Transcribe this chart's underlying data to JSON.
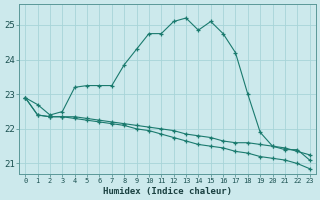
{
  "xlabel": "Humidex (Indice chaleur)",
  "background_color": "#cce9ec",
  "grid_color": "#a8d4d8",
  "line_color": "#1a7a6e",
  "xlim": [
    -0.5,
    23.5
  ],
  "ylim": [
    20.7,
    25.6
  ],
  "yticks": [
    21,
    22,
    23,
    24,
    25
  ],
  "xticks": [
    0,
    1,
    2,
    3,
    4,
    5,
    6,
    7,
    8,
    9,
    10,
    11,
    12,
    13,
    14,
    15,
    16,
    17,
    18,
    19,
    20,
    21,
    22,
    23
  ],
  "xtick_labels": [
    "0",
    "1",
    "2",
    "3",
    "4",
    "5",
    "6",
    "7",
    "8",
    "9",
    "10",
    "11",
    "12",
    "13",
    "14",
    "15",
    "16",
    "17",
    "18",
    "19",
    "20",
    "21",
    "22",
    "23"
  ],
  "series1_x": [
    0,
    1,
    2,
    3,
    4,
    5,
    6,
    7,
    8,
    9,
    10,
    11,
    12,
    13,
    14,
    15,
    16,
    17,
    18,
    19,
    20,
    21,
    22,
    23
  ],
  "series1_y": [
    22.9,
    22.7,
    22.4,
    22.5,
    23.2,
    23.25,
    23.25,
    23.25,
    23.85,
    24.3,
    24.75,
    24.75,
    25.1,
    25.2,
    24.85,
    25.1,
    24.75,
    24.2,
    23.0,
    21.9,
    21.5,
    21.4,
    21.4,
    21.1
  ],
  "series2_x": [
    0,
    1,
    2,
    3,
    4,
    5,
    6,
    7,
    8,
    9,
    10,
    11,
    12,
    13,
    14,
    15,
    16,
    17,
    18,
    19,
    20,
    21,
    22,
    23
  ],
  "series2_y": [
    22.9,
    22.4,
    22.35,
    22.35,
    22.35,
    22.3,
    22.25,
    22.2,
    22.15,
    22.1,
    22.05,
    22.0,
    21.95,
    21.85,
    21.8,
    21.75,
    21.65,
    21.6,
    21.6,
    21.55,
    21.5,
    21.45,
    21.35,
    21.25
  ],
  "series3_x": [
    0,
    1,
    2,
    3,
    4,
    5,
    6,
    7,
    8,
    9,
    10,
    11,
    12,
    13,
    14,
    15,
    16,
    17,
    18,
    19,
    20,
    21,
    22,
    23
  ],
  "series3_y": [
    22.9,
    22.4,
    22.35,
    22.35,
    22.3,
    22.25,
    22.2,
    22.15,
    22.1,
    22.0,
    21.95,
    21.85,
    21.75,
    21.65,
    21.55,
    21.5,
    21.45,
    21.35,
    21.3,
    21.2,
    21.15,
    21.1,
    21.0,
    20.85
  ]
}
